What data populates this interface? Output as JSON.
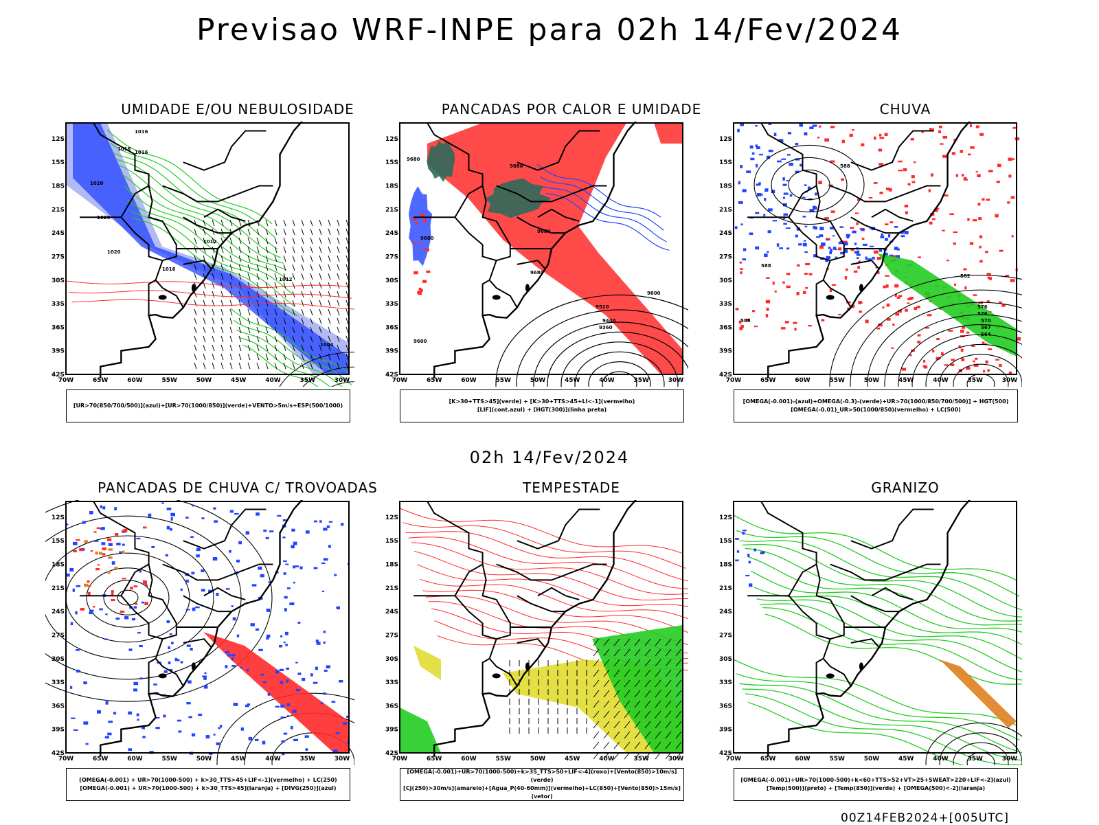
{
  "header": {
    "title": "Previsao WRF-INPE  para 02h 14/Fev/2024"
  },
  "mid_label": "02h 14/Fev/2024",
  "footer_stamp": "00Z14FEB2024+[005UTC]",
  "axes": {
    "lat_ticks": [
      "12S",
      "15S",
      "18S",
      "21S",
      "24S",
      "27S",
      "30S",
      "33S",
      "36S",
      "39S",
      "42S"
    ],
    "lon_ticks": [
      "70W",
      "65W",
      "60W",
      "55W",
      "50W",
      "45W",
      "40W",
      "35W",
      "30W"
    ]
  },
  "panels": [
    {
      "title": "UMIDADE E/OU NEBULOSIDADE",
      "legend": [
        "[UR>70(850/700/500)](azul)+[UR>70(1000/850)](verde)+VENTO>5m/s+ESP(500/1000)"
      ],
      "contour_labels": [
        "1016",
        "1016",
        "1016",
        "1020",
        "1020",
        "1020",
        "1016",
        "1012",
        "1012",
        "1004"
      ]
    },
    {
      "title": "PANCADAS POR CALOR E UMIDADE",
      "legend": [
        "[K>30+TTS>45](verde) + [K>30+TTS>45+LI<-1](vermelho)",
        "[LIF](cont.azul) + [HGT(300)](linha preta)"
      ],
      "contour_labels": [
        "9680",
        "9680",
        "9680",
        "9680",
        "9680",
        "9520",
        "9440",
        "9360",
        "9600",
        "9600"
      ]
    },
    {
      "title": "CHUVA",
      "legend": [
        "[OMEGA(-0.001)-(azul)+OMEGA(-0.3)-(verde)+UR>70(1000/850/700/500)] + HGT(500)",
        "[OMEGA(-0.01)_UR>50(1000/850)(vermelho) + LC(500)"
      ],
      "contour_labels": [
        "588",
        "588",
        "588",
        "582",
        "576",
        "576",
        "570",
        "567",
        "564"
      ]
    },
    {
      "title": "PANCADAS DE CHUVA C/ TROVOADAS",
      "legend": [
        "[OMEGA(-0.001) + UR>70(1000-500) + k>30_TTS>45+LIF<-1](vermelho) + LC(250)",
        "[OMEGA(-0.001) + UR>70(1000-500) + k>30_TTS>45](laranja) + [DIVG(250)](azul)"
      ],
      "contour_labels": []
    },
    {
      "title": "TEMPESTADE",
      "legend": [
        "[OMEGA(-0.001)+UR>70(1000-500)+k>35_TTS>50+LIF<-4](roxo)+[Vento(850)>10m/s](verde)",
        "[CJ(250)>30m/s](amarelo)+[Agua_P(40-60mm)](vermelho)+LC(850)+[Vento(850)>15m/s](vetor)"
      ],
      "contour_labels": []
    },
    {
      "title": "GRANIZO",
      "legend": [
        "[OMEGA(-0.001)+UR>70(1000-500)+k<60+TTS>52+VT>25+SWEAT>220+LIF<-2](azul)",
        "[Temp(500)](preto) + [Temp(850)](verde) + [OMEGA(500)<-2](laranja)"
      ],
      "contour_labels": []
    }
  ],
  "colors": {
    "red": "#ff2a2a",
    "green": "#22cc22",
    "blue": "#2244ff",
    "lightblue": "#a0a8f0",
    "darkgreen": "#2d6a5a",
    "yellow": "#e0dc30",
    "orange": "#e08020"
  }
}
